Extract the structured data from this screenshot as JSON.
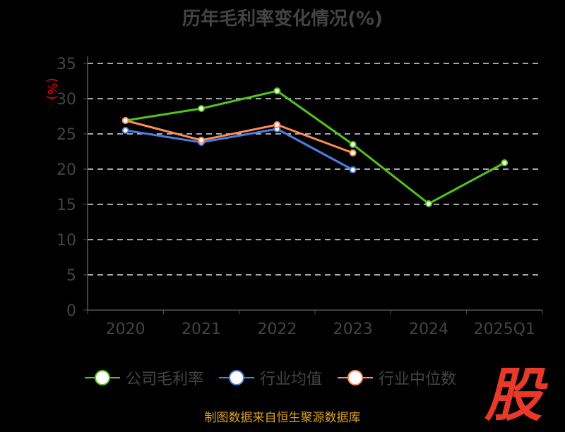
{
  "chart_data": {
    "type": "line",
    "title": "历年毛利率变化情况(%)",
    "ylabel": "(%)",
    "xlabel": "",
    "categories": [
      "2020",
      "2021",
      "2022",
      "2023",
      "2024",
      "2025Q1"
    ],
    "ylim": [
      0,
      35
    ],
    "yticks": [
      0,
      5,
      10,
      15,
      20,
      25,
      30,
      35
    ],
    "grid": true,
    "legend_position": "bottom",
    "series": [
      {
        "name": "公司毛利率",
        "color": "#52c41a",
        "values": [
          26.9,
          28.6,
          31.1,
          23.5,
          15.1,
          20.9
        ]
      },
      {
        "name": "行业均值",
        "color": "#4a7fe0",
        "values": [
          25.5,
          23.8,
          25.7,
          19.9,
          null,
          null
        ]
      },
      {
        "name": "行业中位数",
        "color": "#ff8c5a",
        "values": [
          26.9,
          24.1,
          26.3,
          22.3,
          null,
          null
        ]
      }
    ]
  },
  "footer": "制图数据来自恒生聚源数据库",
  "logo_text": "股"
}
